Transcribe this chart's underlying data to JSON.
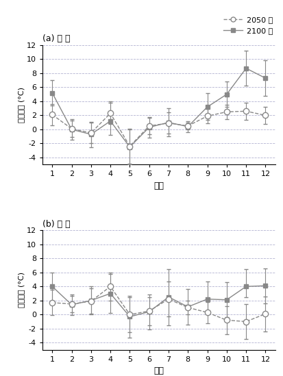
{
  "months": [
    1,
    2,
    3,
    4,
    5,
    6,
    7,
    8,
    9,
    10,
    11,
    12
  ],
  "river_2050_mean": [
    2.1,
    0.1,
    -0.5,
    2.3,
    -2.4,
    0.5,
    0.9,
    0.5,
    1.9,
    2.5,
    2.6,
    2.0
  ],
  "river_2050_err_lo": [
    1.5,
    1.2,
    1.5,
    1.5,
    2.5,
    1.2,
    1.5,
    0.5,
    1.0,
    1.0,
    1.2,
    1.2
  ],
  "river_2050_err_hi": [
    1.5,
    1.2,
    1.5,
    1.5,
    2.5,
    1.2,
    1.5,
    0.5,
    1.0,
    1.0,
    1.2,
    1.2
  ],
  "river_2100_mean": [
    5.2,
    0.0,
    -0.7,
    1.2,
    -2.5,
    0.3,
    1.0,
    0.4,
    3.2,
    5.0,
    8.7,
    7.3
  ],
  "river_2100_err_lo": [
    1.8,
    1.5,
    1.8,
    2.0,
    2.5,
    1.5,
    2.0,
    0.8,
    1.8,
    1.8,
    2.5,
    2.5
  ],
  "river_2100_err_hi": [
    1.8,
    1.5,
    1.8,
    2.8,
    2.5,
    1.5,
    2.0,
    0.8,
    2.0,
    1.8,
    2.5,
    2.5
  ],
  "lake_2050_mean": [
    1.7,
    1.5,
    1.9,
    4.0,
    0.0,
    0.5,
    2.2,
    1.0,
    0.3,
    -0.8,
    -1.0,
    0.1
  ],
  "lake_2050_err_lo": [
    1.8,
    1.2,
    1.8,
    2.0,
    2.5,
    2.0,
    2.5,
    1.0,
    1.5,
    2.0,
    2.5,
    2.5
  ],
  "lake_2050_err_hi": [
    1.8,
    1.2,
    1.8,
    2.0,
    2.5,
    2.0,
    2.5,
    1.0,
    1.5,
    2.0,
    2.5,
    2.5
  ],
  "lake_2100_mean": [
    4.0,
    1.4,
    2.0,
    3.0,
    -0.3,
    0.4,
    2.5,
    1.1,
    2.2,
    2.1,
    4.0,
    4.1
  ],
  "lake_2100_err_lo": [
    2.0,
    1.5,
    2.0,
    2.8,
    3.0,
    2.5,
    4.0,
    2.5,
    1.8,
    2.5,
    1.5,
    2.5
  ],
  "lake_2100_err_hi": [
    2.0,
    1.5,
    2.0,
    2.8,
    3.0,
    2.5,
    4.0,
    2.5,
    2.5,
    2.5,
    2.5,
    2.5
  ],
  "line_color_2050": "#888888",
  "line_color_2100": "#888888",
  "marker_color_2050": "#ffffff",
  "marker_color_2100": "#888888",
  "background_color": "#ffffff",
  "grid_color": "#aaaacc",
  "ylabel": "수온변화 (°C)",
  "xlabel": "월별",
  "title_a": "(a) 하 천",
  "title_b": "(b) 호 소",
  "legend_2050": "2050 년",
  "legend_2100": "2100 년",
  "ylim": [
    -5,
    12
  ],
  "yticks": [
    -4,
    -2,
    0,
    2,
    4,
    6,
    8,
    10,
    12
  ]
}
